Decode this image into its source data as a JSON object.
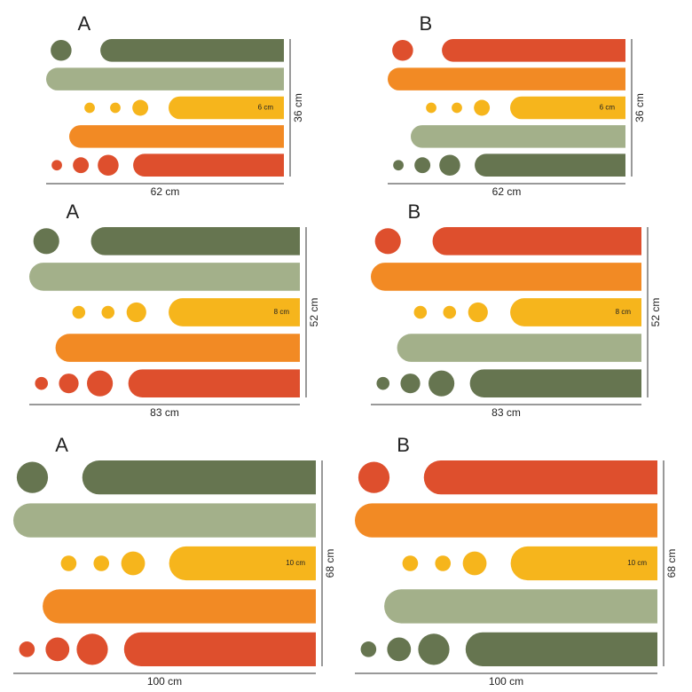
{
  "panels": [
    {
      "label": "A",
      "width": "62 cm",
      "height": "36 cm",
      "bar_label": "6 cm"
    },
    {
      "label": "B",
      "width": "62 cm",
      "height": "36 cm",
      "bar_label": "6 cm"
    },
    {
      "label": "A",
      "width": "83 cm",
      "height": "52 cm",
      "bar_label": "8 cm"
    },
    {
      "label": "B",
      "width": "83 cm",
      "height": "52 cm",
      "bar_label": "8 cm"
    },
    {
      "label": "A",
      "width": "100 cm",
      "height": "68 cm",
      "bar_label": "10 cm"
    },
    {
      "label": "B",
      "width": "100 cm",
      "height": "68 cm",
      "bar_label": "10 cm"
    }
  ]
}
